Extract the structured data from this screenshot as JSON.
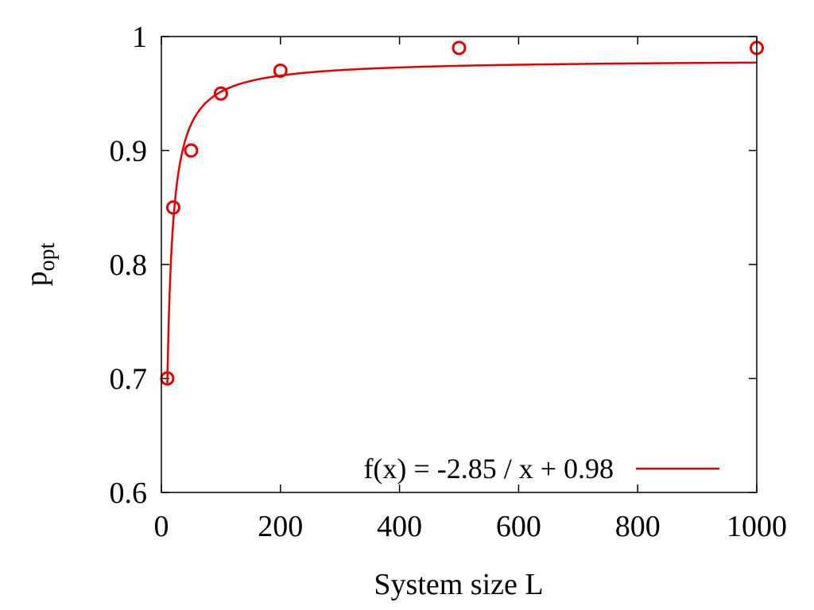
{
  "chart_data": {
    "type": "scatter",
    "title": "",
    "xlabel": "System size L",
    "ylabel": {
      "main": "p",
      "subscript": "opt"
    },
    "xlim": [
      0,
      1000
    ],
    "ylim": [
      0.6,
      1.0
    ],
    "x_ticks": [
      0,
      200,
      400,
      600,
      800,
      1000
    ],
    "x_tick_labels": [
      "0",
      "200",
      "400",
      "600",
      "800",
      "1000"
    ],
    "y_ticks": [
      0.6,
      0.7,
      0.8,
      0.9,
      1.0
    ],
    "y_tick_labels": [
      "0.6",
      "0.7",
      "0.8",
      "0.9",
      "1"
    ],
    "grid": false,
    "legend_position": "bottom-right",
    "series": [
      {
        "kind": "points",
        "marker": "open-circle",
        "color": "#e00000",
        "x": [
          10,
          20,
          50,
          100,
          200,
          500,
          1000
        ],
        "y": [
          0.7,
          0.85,
          0.9,
          0.95,
          0.97,
          0.99,
          0.99
        ]
      },
      {
        "kind": "fit-line",
        "name": "f(x) = -2.85 / x + 0.98",
        "color": "#e00000",
        "a": -2.85,
        "b": 0.98,
        "x_start": 10,
        "x_end": 1000
      }
    ]
  }
}
